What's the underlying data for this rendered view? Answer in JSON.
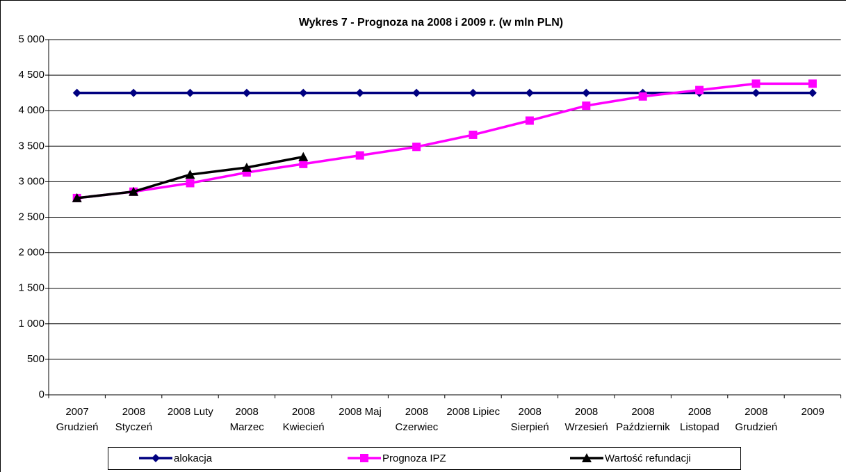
{
  "chart_data": {
    "type": "line",
    "title": "Wykres 7 - Prognoza na 2008 i 2009 r. (w mln PLN)",
    "categories": [
      "2007 Grudzień",
      "2008 Styczeń",
      "2008 Luty",
      "2008 Marzec",
      "2008 Kwiecień",
      "2008 Maj",
      "2008 Czerwiec",
      "2008 Lipiec",
      "2008 Sierpień",
      "2008 Wrzesień",
      "2008 Październik",
      "2008 Listopad",
      "2008 Grudzień",
      "2009"
    ],
    "series": [
      {
        "name": "alokacja",
        "color": "#000080",
        "marker": "diamond",
        "values": [
          4250,
          4250,
          4250,
          4250,
          4250,
          4250,
          4250,
          4250,
          4250,
          4250,
          4250,
          4250,
          4250,
          4250
        ]
      },
      {
        "name": "Prognoza IPZ",
        "color": "#ff00ff",
        "marker": "square",
        "values": [
          2770,
          2860,
          2980,
          3130,
          3250,
          3370,
          3490,
          3660,
          3860,
          4070,
          4200,
          4290,
          4380,
          4380
        ]
      },
      {
        "name": "Wartość refundacji",
        "color": "#000000",
        "marker": "triangle",
        "values": [
          2770,
          2860,
          3100,
          3200,
          3350,
          null,
          null,
          null,
          null,
          null,
          null,
          null,
          null,
          null
        ]
      }
    ],
    "ylim": [
      0,
      5000
    ],
    "yticks": [
      0,
      500,
      {
        "value": 1000,
        "label": "1 000"
      },
      {
        "value": 1500,
        "label": "1 500"
      },
      {
        "value": 2000,
        "label": "2 000"
      },
      {
        "value": 2500,
        "label": "2 500"
      },
      {
        "value": 3000,
        "label": "3 000"
      },
      {
        "value": 3500,
        "label": "3 500"
      },
      {
        "value": 4000,
        "label": "4 000"
      },
      {
        "value": 4500,
        "label": "4 500"
      },
      {
        "value": 5000,
        "label": "5 000"
      }
    ],
    "grid": true,
    "legend": "bottom"
  }
}
